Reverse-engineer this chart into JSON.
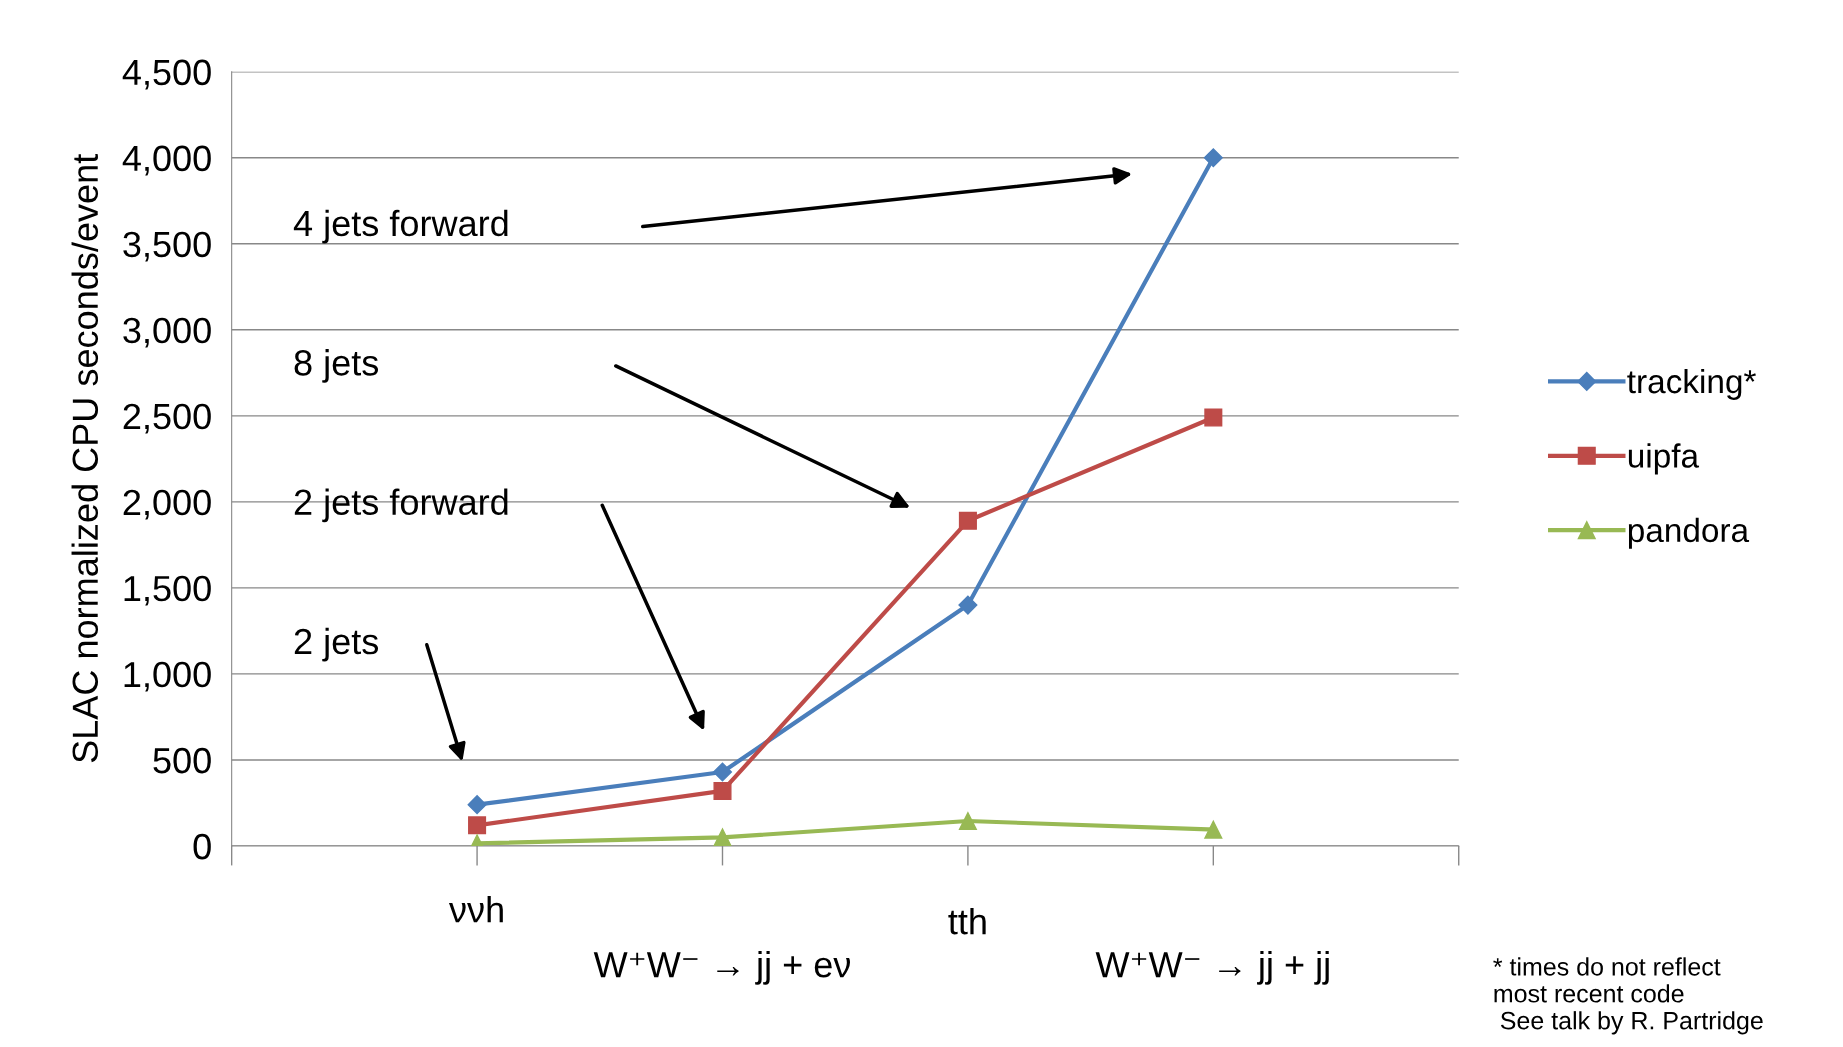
{
  "chart_data": {
    "type": "line",
    "ylabel": "SLAC normalized CPU seconds/event",
    "categories": [
      "ννh",
      "W⁺W⁻ → jj + eν",
      "tth",
      "W⁺W⁻ → jj + jj"
    ],
    "series": [
      {
        "name": "tracking*",
        "color": "#4a7ebb",
        "marker": "diamond",
        "values": [
          240,
          430,
          1400,
          4000
        ]
      },
      {
        "name": "uipfa",
        "color": "#be4b48",
        "marker": "square",
        "values": [
          120,
          320,
          1890,
          2490
        ]
      },
      {
        "name": "pandora",
        "color": "#98b954",
        "marker": "triangle",
        "values": [
          15,
          50,
          145,
          95
        ]
      }
    ],
    "ylim": [
      0,
      4500
    ],
    "yticks": [
      0,
      500,
      {
        "value": 1000,
        "label": "1,000"
      },
      {
        "value": 1500,
        "label": "1,500"
      },
      {
        "value": 2000,
        "label": "2,000"
      },
      {
        "value": 2500,
        "label": "2,500"
      },
      {
        "value": 3000,
        "label": "3,000"
      },
      {
        "value": 3500,
        "label": "3,500"
      },
      {
        "value": 4000,
        "label": "4,000"
      },
      {
        "value": 4500,
        "label": "4,500"
      }
    ],
    "grid": "y",
    "legend": "right",
    "line_style": "solid",
    "annotations": [
      "4 jets forward",
      "8 jets",
      "2 jets forward",
      "2 jets",
      "* times do not reflect\nmost recent code\n See talk by R. Partridge"
    ]
  }
}
